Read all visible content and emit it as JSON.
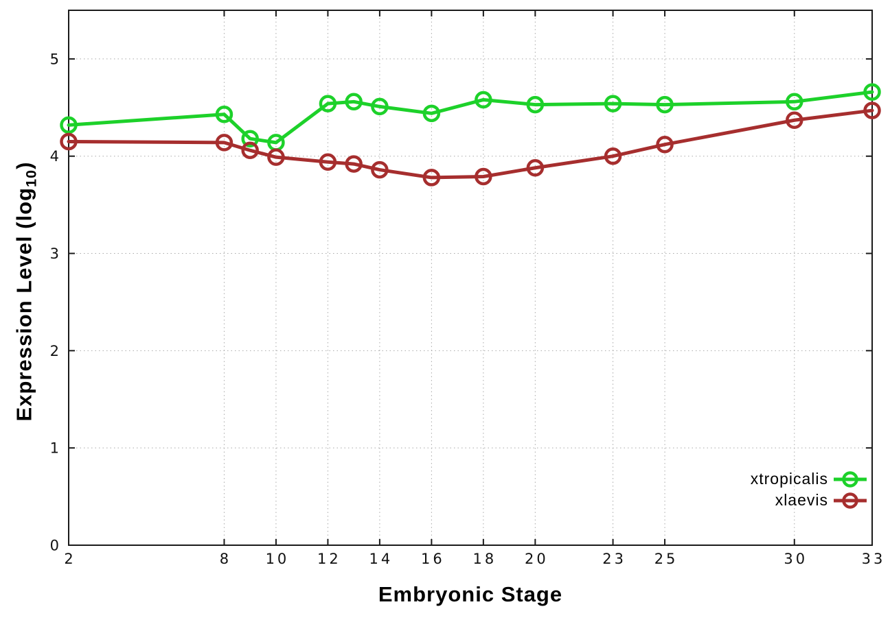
{
  "chart_data": {
    "type": "line",
    "title": "",
    "xlabel": "Embryonic Stage",
    "ylabel": "Expression Level (log10)",
    "ylabel_parts": {
      "prefix": "Expression Level (log",
      "sub": "10",
      "suffix": ")"
    },
    "x": [
      2,
      8,
      9,
      10,
      12,
      13,
      14,
      16,
      18,
      20,
      23,
      25,
      30,
      33
    ],
    "x_ticks": [
      2,
      8,
      10,
      12,
      14,
      16,
      18,
      20,
      23,
      25,
      30,
      33
    ],
    "y_ticks": [
      0,
      1,
      2,
      3,
      4,
      5
    ],
    "xlim": [
      2,
      33
    ],
    "ylim": [
      0,
      5.5
    ],
    "grid": true,
    "legend_position": "inside-bottom-right",
    "series": [
      {
        "name": "xtropicalis",
        "color": "#1dd12a",
        "values": [
          4.32,
          4.43,
          4.18,
          4.14,
          4.54,
          4.56,
          4.51,
          4.44,
          4.58,
          4.53,
          4.54,
          4.53,
          4.56,
          4.66
        ]
      },
      {
        "name": "xlaevis",
        "color": "#a62e2e",
        "values": [
          4.15,
          4.14,
          4.06,
          3.99,
          3.94,
          3.92,
          3.86,
          3.78,
          3.79,
          3.88,
          4.0,
          4.12,
          4.37,
          4.47
        ]
      }
    ]
  },
  "colors": {
    "background": "#ffffff",
    "axis": "#1a1a1a",
    "grid": "#a8a8a8",
    "tick_text": "#111111"
  }
}
